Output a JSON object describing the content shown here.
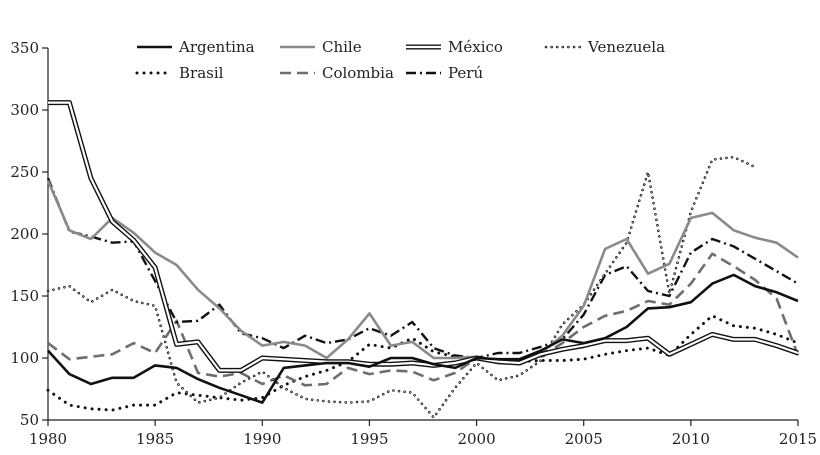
{
  "chart_data": {
    "type": "line",
    "title": "",
    "xlabel": "",
    "ylabel": "",
    "xlim": [
      1980,
      2015
    ],
    "ylim": [
      50,
      350
    ],
    "x_ticks": [
      "1980",
      "1985",
      "1990",
      "1995",
      "2000",
      "2005",
      "2010",
      "2015"
    ],
    "y_ticks": [
      "50",
      "100",
      "150",
      "200",
      "250",
      "300",
      "350"
    ],
    "grid": false,
    "legend_position": "top",
    "x": [
      1980,
      1981,
      1982,
      1983,
      1984,
      1985,
      1986,
      1987,
      1988,
      1989,
      1990,
      1991,
      1992,
      1993,
      1994,
      1995,
      1996,
      1997,
      1998,
      1999,
      2000,
      2001,
      2002,
      2003,
      2004,
      2005,
      2006,
      2007,
      2008,
      2009,
      2010,
      2011,
      2012,
      2013,
      2014,
      2015
    ],
    "series": [
      {
        "name": "Argentina",
        "color": "#111111",
        "style": "solid",
        "values": [
          106,
          87,
          79,
          84,
          84,
          94,
          92,
          83,
          76,
          70,
          64,
          92,
          94,
          96,
          96,
          93,
          100,
          100,
          95,
          92,
          100,
          99,
          99,
          106,
          115,
          112,
          116,
          125,
          140,
          141,
          145,
          160,
          167,
          158,
          153,
          146
        ]
      },
      {
        "name": "Chile",
        "color": "#8a8a8a",
        "style": "solid",
        "values": [
          243,
          203,
          196,
          213,
          201,
          185,
          175,
          155,
          140,
          122,
          110,
          113,
          110,
          100,
          115,
          136,
          110,
          113,
          100,
          100,
          101,
          96,
          98,
          104,
          118,
          142,
          188,
          196,
          168,
          176,
          213,
          217,
          203,
          197,
          193,
          181
        ]
      },
      {
        "name": "México",
        "color": "#111111",
        "style": "double",
        "values": [
          306,
          306,
          245,
          210,
          195,
          173,
          111,
          113,
          90,
          90,
          100,
          99,
          98,
          97,
          97,
          95,
          95,
          96,
          94,
          96,
          100,
          97,
          96,
          103,
          107,
          110,
          114,
          114,
          116,
          103,
          111,
          119,
          115,
          115,
          110,
          104
        ]
      },
      {
        "name": "Venezuela",
        "color": "#111111",
        "style": "open-circles",
        "values": [
          154,
          158,
          145,
          155,
          146,
          142,
          80,
          64,
          68,
          80,
          89,
          76,
          67,
          65,
          64,
          65,
          74,
          72,
          52,
          76,
          96,
          82,
          86,
          98,
          127,
          143,
          168,
          193,
          250,
          152,
          218,
          260,
          262,
          254,
          null,
          null
        ]
      },
      {
        "name": "Brasil",
        "color": "#111111",
        "style": "dotted",
        "values": [
          74,
          62,
          59,
          58,
          62,
          62,
          72,
          70,
          68,
          66,
          68,
          78,
          85,
          90,
          97,
          111,
          108,
          116,
          105,
          101,
          100,
          98,
          97,
          98,
          98,
          99,
          103,
          106,
          108,
          102,
          119,
          134,
          126,
          124,
          119,
          112
        ]
      },
      {
        "name": "Colombia",
        "color": "#6e6e6e",
        "style": "dashed",
        "values": [
          112,
          99,
          101,
          103,
          112,
          104,
          130,
          88,
          85,
          88,
          79,
          86,
          78,
          79,
          92,
          87,
          90,
          89,
          82,
          88,
          100,
          96,
          97,
          101,
          112,
          125,
          134,
          138,
          146,
          143,
          160,
          184,
          174,
          163,
          148,
          102
        ]
      },
      {
        "name": "Perú",
        "color": "#111111",
        "style": "dash-dot",
        "values": [
          245,
          202,
          198,
          193,
          194,
          162,
          129,
          130,
          143,
          120,
          116,
          108,
          118,
          112,
          115,
          124,
          118,
          129,
          108,
          102,
          100,
          104,
          104,
          109,
          115,
          135,
          167,
          174,
          154,
          150,
          185,
          196,
          190,
          180,
          170,
          160
        ]
      }
    ]
  }
}
